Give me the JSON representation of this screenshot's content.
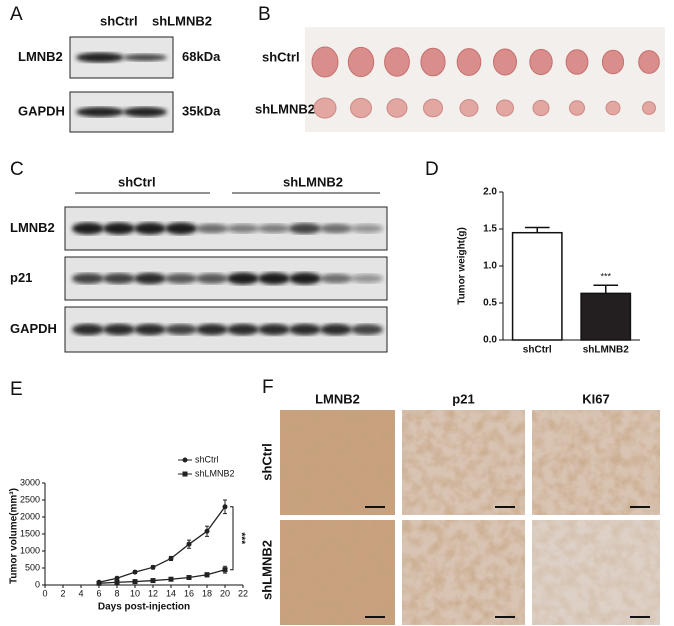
{
  "panel_labels": [
    "A",
    "B",
    "C",
    "D",
    "E",
    "F"
  ],
  "blot_a": {
    "columns": [
      "shCtrl",
      "shLMNB2"
    ],
    "rows": [
      "LMNB2",
      "GAPDH"
    ],
    "sizes": [
      "68kDa",
      "35kDa"
    ]
  },
  "photo_b": {
    "rows": [
      "shCtrl",
      "shLMNB2"
    ]
  },
  "blot_c": {
    "groups": [
      "shCtrl",
      "shLMNB2"
    ],
    "rows": [
      "LMNB2",
      "p21",
      "GAPDH"
    ]
  },
  "ihc_f": {
    "columns": [
      "LMNB2",
      "p21",
      "KI67"
    ],
    "rows": [
      "shCtrl",
      "shLMNB2"
    ]
  },
  "chart_data": [
    {
      "type": "bar",
      "ylabel": "Tumor weight(g)",
      "categories": [
        "shCtrl",
        "shLMNB2"
      ],
      "values": [
        1.45,
        0.63
      ],
      "errors": [
        0.07,
        0.11
      ],
      "colors": [
        "#ffffff",
        "#231f20"
      ],
      "ylim": [
        0,
        2
      ],
      "yticks": [
        {
          "value": 0,
          "label": "0.0"
        },
        {
          "value": 0.5,
          "label": "0.5"
        },
        {
          "value": 1,
          "label": "1.0"
        },
        {
          "value": 1.5,
          "label": "1.5"
        },
        {
          "value": 2,
          "label": "2.0"
        }
      ],
      "annotation": "***"
    },
    {
      "type": "line",
      "ylabel": "Tumor volume(mm³)",
      "xlabel": "Days post-injection",
      "x": [
        6,
        8,
        10,
        12,
        14,
        16,
        18,
        20
      ],
      "series": [
        {
          "name": "shCtrl",
          "color": "#222222",
          "marker": "circle",
          "values": [
            80,
            200,
            380,
            520,
            780,
            1200,
            1580,
            2300
          ],
          "errors": [
            20,
            30,
            40,
            50,
            60,
            120,
            150,
            200
          ]
        },
        {
          "name": "shLMNB2",
          "color": "#222222",
          "marker": "square",
          "values": [
            50,
            80,
            100,
            130,
            170,
            220,
            300,
            450
          ],
          "errors": [
            10,
            10,
            15,
            20,
            25,
            40,
            60,
            100
          ]
        }
      ],
      "xlim": [
        0,
        22
      ],
      "xticks": [
        0,
        2,
        4,
        6,
        8,
        10,
        12,
        14,
        16,
        18,
        20,
        22
      ],
      "ylim": [
        0,
        3000
      ],
      "yticks": [
        0,
        500,
        1000,
        1500,
        2000,
        2500,
        3000
      ],
      "annotation": "***"
    }
  ]
}
